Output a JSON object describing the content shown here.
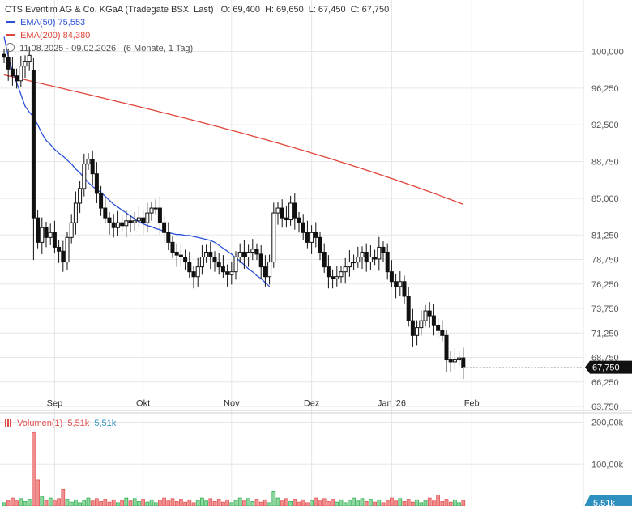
{
  "header": {
    "title": "CTS Eventim AG & Co. KGaA (Tradegate BSX, Last)",
    "ohlc": [
      {
        "label": "O:",
        "value": "69,400"
      },
      {
        "label": "H:",
        "value": "69,650"
      },
      {
        "label": "L:",
        "value": "67,450"
      },
      {
        "label": "C:",
        "value": "67,750"
      }
    ],
    "ema50_label": "EMA(50)",
    "ema50_value": "75,553",
    "ema200_label": "EMA(200)",
    "ema200_value": "84,380",
    "range": "11.08.2025 - 09.02.2026",
    "range_note": "(6 Monate, 1 Tag)"
  },
  "colors": {
    "up": "#22aa44",
    "down": "#e24b4b",
    "candle": "#111111",
    "ema50": "#2a4fdb",
    "ema200": "#e0453a",
    "grid": "#e6e6e6",
    "price_tag": "#111111",
    "volume_tag": "#2f8fbf"
  },
  "volume_legend": {
    "label": "Volumen(1)",
    "v1": "5,51k",
    "v2": "5,51k",
    "tag": "5,51k"
  },
  "chart_data": {
    "type": "candlestick",
    "y_ticks": [
      "100,000",
      "96,250",
      "92,500",
      "88,750",
      "85,000",
      "81,250",
      "78,750",
      "76,250",
      "73,750",
      "71,250",
      "68,750",
      "66,250",
      "63,750"
    ],
    "y_tick_values": [
      100,
      96.25,
      92.5,
      88.75,
      85,
      81.25,
      78.75,
      76.25,
      73.75,
      71.25,
      68.75,
      66.25,
      63.75
    ],
    "ylim": [
      63.75,
      100
    ],
    "x_ticks": [
      "Sep",
      "Okt",
      "Nov",
      "Dez",
      "Jan '26",
      "Feb"
    ],
    "x_tick_index": [
      12,
      33,
      54,
      73,
      92,
      111
    ],
    "last_price_label": "67,750",
    "last_price": 67.75,
    "closes": [
      99.4,
      98.2,
      97.5,
      97.0,
      98.5,
      99.0,
      99.6,
      83.0,
      80.5,
      82.0,
      81.0,
      81.5,
      80.0,
      79.6,
      78.5,
      81.0,
      82.5,
      84.5,
      86.0,
      88.5,
      89.0,
      87.5,
      85.5,
      84.0,
      83.0,
      82.5,
      82.0,
      82.5,
      82.2,
      82.7,
      82.5,
      82.7,
      83.0,
      82.5,
      83.5,
      84.0,
      84.0,
      82.5,
      81.5,
      80.5,
      79.5,
      79.2,
      79.0,
      78.5,
      77.5,
      77.0,
      78.0,
      79.0,
      79.5,
      79.0,
      78.5,
      78.0,
      77.5,
      77.2,
      77.5,
      79.0,
      79.5,
      79.0,
      79.5,
      79.8,
      79.3,
      78.0,
      77.0,
      78.5,
      83.5,
      84.0,
      83.0,
      82.8,
      84.5,
      83.0,
      82.5,
      81.5,
      80.5,
      81.5,
      81.0,
      79.5,
      78.0,
      77.0,
      76.8,
      77.0,
      77.5,
      78.0,
      78.5,
      78.5,
      79.0,
      79.5,
      78.5,
      79.0,
      78.8,
      80.0,
      79.5,
      77.5,
      76.5,
      76.0,
      76.5,
      75.0,
      72.5,
      71.0,
      71.8,
      72.5,
      73.5,
      73.0,
      72.0,
      71.5,
      71.0,
      68.5,
      68.3,
      68.5,
      68.7,
      67.75
    ],
    "ema50": [
      101.5,
      99.5,
      98.0,
      96.8,
      95.6,
      94.4,
      93.8,
      93.3,
      92.5,
      91.6,
      90.9,
      90.5,
      90.0,
      89.6,
      89.3,
      88.9,
      88.5,
      88.0,
      87.6,
      87.1,
      86.6,
      86.2,
      85.9,
      85.6,
      85.2,
      84.8,
      84.4,
      84.1,
      83.8,
      83.5,
      83.2,
      82.9,
      82.6,
      82.4,
      82.2,
      82.1,
      81.9,
      81.8,
      81.6,
      81.5,
      81.4,
      81.3,
      81.3,
      81.2,
      81.2,
      81.1,
      81.0,
      80.9,
      80.8,
      80.7,
      80.5,
      80.2,
      79.9,
      79.6,
      79.3,
      78.9,
      78.6,
      78.2,
      77.8,
      77.5,
      77.1,
      76.8,
      76.4,
      76.0
    ],
    "ema50_start_index": 46,
    "ema200_start": 97.6,
    "ema200_end": 84.38,
    "volume_ylim": [
      0,
      200
    ],
    "volume_ticks": [
      "200,00k",
      "100,00k"
    ],
    "volume_tick_values": [
      200,
      100
    ]
  }
}
